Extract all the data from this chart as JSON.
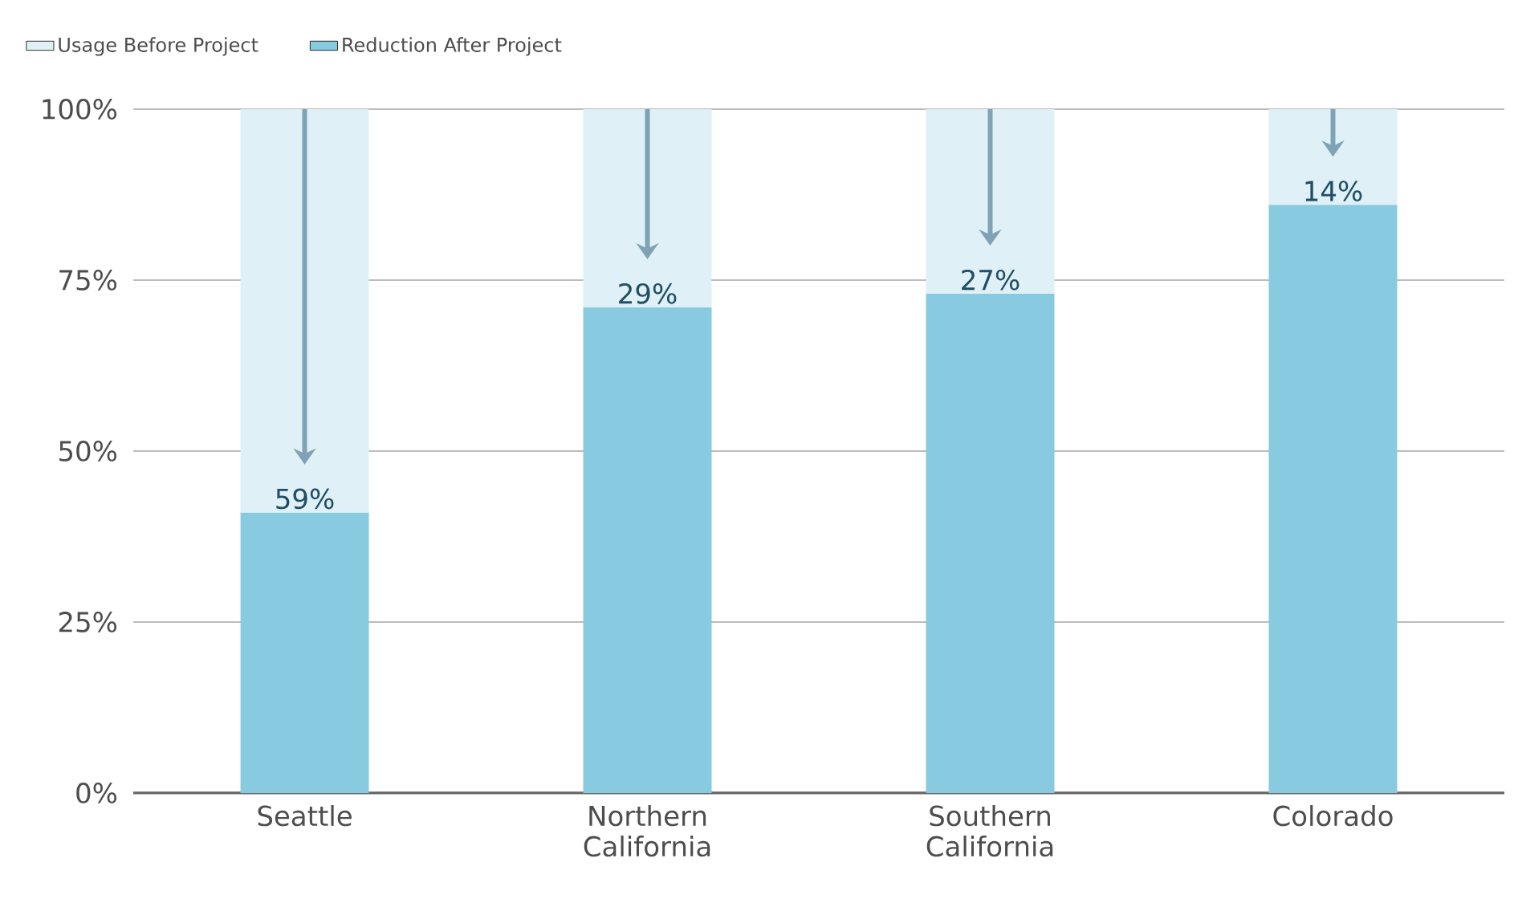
{
  "chart_data": {
    "type": "bar",
    "stacked": true,
    "categories": [
      "Seattle",
      "Northern California",
      "Southern California",
      "Colorado"
    ],
    "series": [
      {
        "name": "Reduction After Project",
        "color": "#88cae0",
        "values": [
          41,
          71,
          73,
          86
        ]
      },
      {
        "name": "Usage Before Project",
        "color": "#dff0f6",
        "values": [
          59,
          29,
          27,
          14
        ],
        "value_labels": [
          "59%",
          "29%",
          "27%",
          "14%"
        ]
      }
    ],
    "ylim": [
      0,
      100
    ],
    "yticks": [
      {
        "value": 0,
        "label": "0%"
      },
      {
        "value": 25,
        "label": "25%"
      },
      {
        "value": 50,
        "label": "50%"
      },
      {
        "value": 75,
        "label": "75%"
      },
      {
        "value": 100,
        "label": "100%"
      }
    ],
    "grid": "y",
    "legend": "top left"
  }
}
